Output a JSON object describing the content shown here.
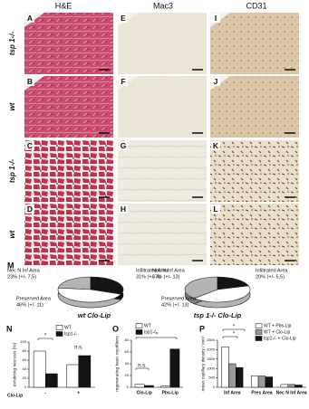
{
  "figure": {
    "column_headers": [
      "H&E",
      "Mac3",
      "CD31"
    ],
    "row_labels": [
      "tsp 1-/-",
      "wt",
      "tsp 1-/-",
      "wt"
    ],
    "panels": [
      [
        "A",
        "E",
        "I"
      ],
      [
        "B",
        "F",
        "J"
      ],
      [
        "C",
        "G",
        "K"
      ],
      [
        "D",
        "H",
        "L"
      ]
    ]
  },
  "chart_data": [
    {
      "type": "pie",
      "panel_label": "M",
      "title": "wt Clo-Lip",
      "categories": [
        "Nec N Inf Area",
        "Infiltrated Area",
        "Preserved Area"
      ],
      "values": [
        23,
        31,
        46
      ],
      "value_labels": [
        "23% (+/- 7,5)",
        "31% (+/- 4)",
        "46% (+/- 11)"
      ],
      "colors": [
        "#b4b4b4",
        "#141414",
        "#ffffff"
      ]
    },
    {
      "type": "pie",
      "title": "tsp 1-/- Clo-Lip",
      "categories": [
        "Nec N Inf Area",
        "Infiltrated Area",
        "Preserved Area"
      ],
      "values": [
        37,
        20,
        42
      ],
      "value_labels": [
        "37% (+/- 13)",
        "20% (+/- 5,5)",
        "42% (+/- 13)"
      ],
      "colors": [
        "#b4b4b4",
        "#141414",
        "#ffffff"
      ]
    },
    {
      "type": "bar",
      "panel_label": "N",
      "y_label": "exhibiting necrosis (%)",
      "x_label": "Clo-Lip",
      "categories": [
        "-",
        "+"
      ],
      "series": [
        {
          "name": "WT",
          "color": "#ffffff",
          "values": [
            80,
            50
          ]
        },
        {
          "name": "tsp1-/-",
          "color": "#141414",
          "values": [
            30,
            70
          ]
        }
      ],
      "ylim": [
        0,
        100
      ],
      "yticks": [
        0,
        20,
        40,
        60,
        80,
        100
      ],
      "annotations": [
        "*",
        "n.s."
      ]
    },
    {
      "type": "bar",
      "panel_label": "O",
      "y_label": "regenerating basic myofibers",
      "categories": [
        "Clo-Lip",
        "Pbs-Lip"
      ],
      "series": [
        {
          "name": "WT",
          "color": "#ffffff",
          "values": [
            5,
            2
          ]
        },
        {
          "name": "tsp1-/-",
          "color": "#141414",
          "values": [
            3,
            65
          ]
        }
      ],
      "ylim": [
        0,
        80
      ],
      "yticks": [
        0,
        20,
        40,
        60,
        80
      ],
      "annotations": [
        "n.s.",
        "*"
      ]
    },
    {
      "type": "bar",
      "panel_label": "P",
      "y_label": "mean capillary density / mm²",
      "categories": [
        "Inf Area",
        "Pres Area",
        "Nec N Inf Area"
      ],
      "series": [
        {
          "name": "WT + Pbs-Lip",
          "color": "#ffffff",
          "values": [
            2150,
            600,
            150
          ]
        },
        {
          "name": "WT + Clo-Lip",
          "color": "#9a9a9a",
          "values": [
            1250,
            600,
            150
          ]
        },
        {
          "name": "tsp1-/- + Clo-Lip",
          "color": "#141414",
          "values": [
            1050,
            550,
            120
          ]
        }
      ],
      "ylim": [
        0,
        2500
      ],
      "yticks": [
        0,
        500,
        1000,
        1500,
        2000,
        2500
      ],
      "annotations": [
        "*",
        "*"
      ]
    }
  ]
}
